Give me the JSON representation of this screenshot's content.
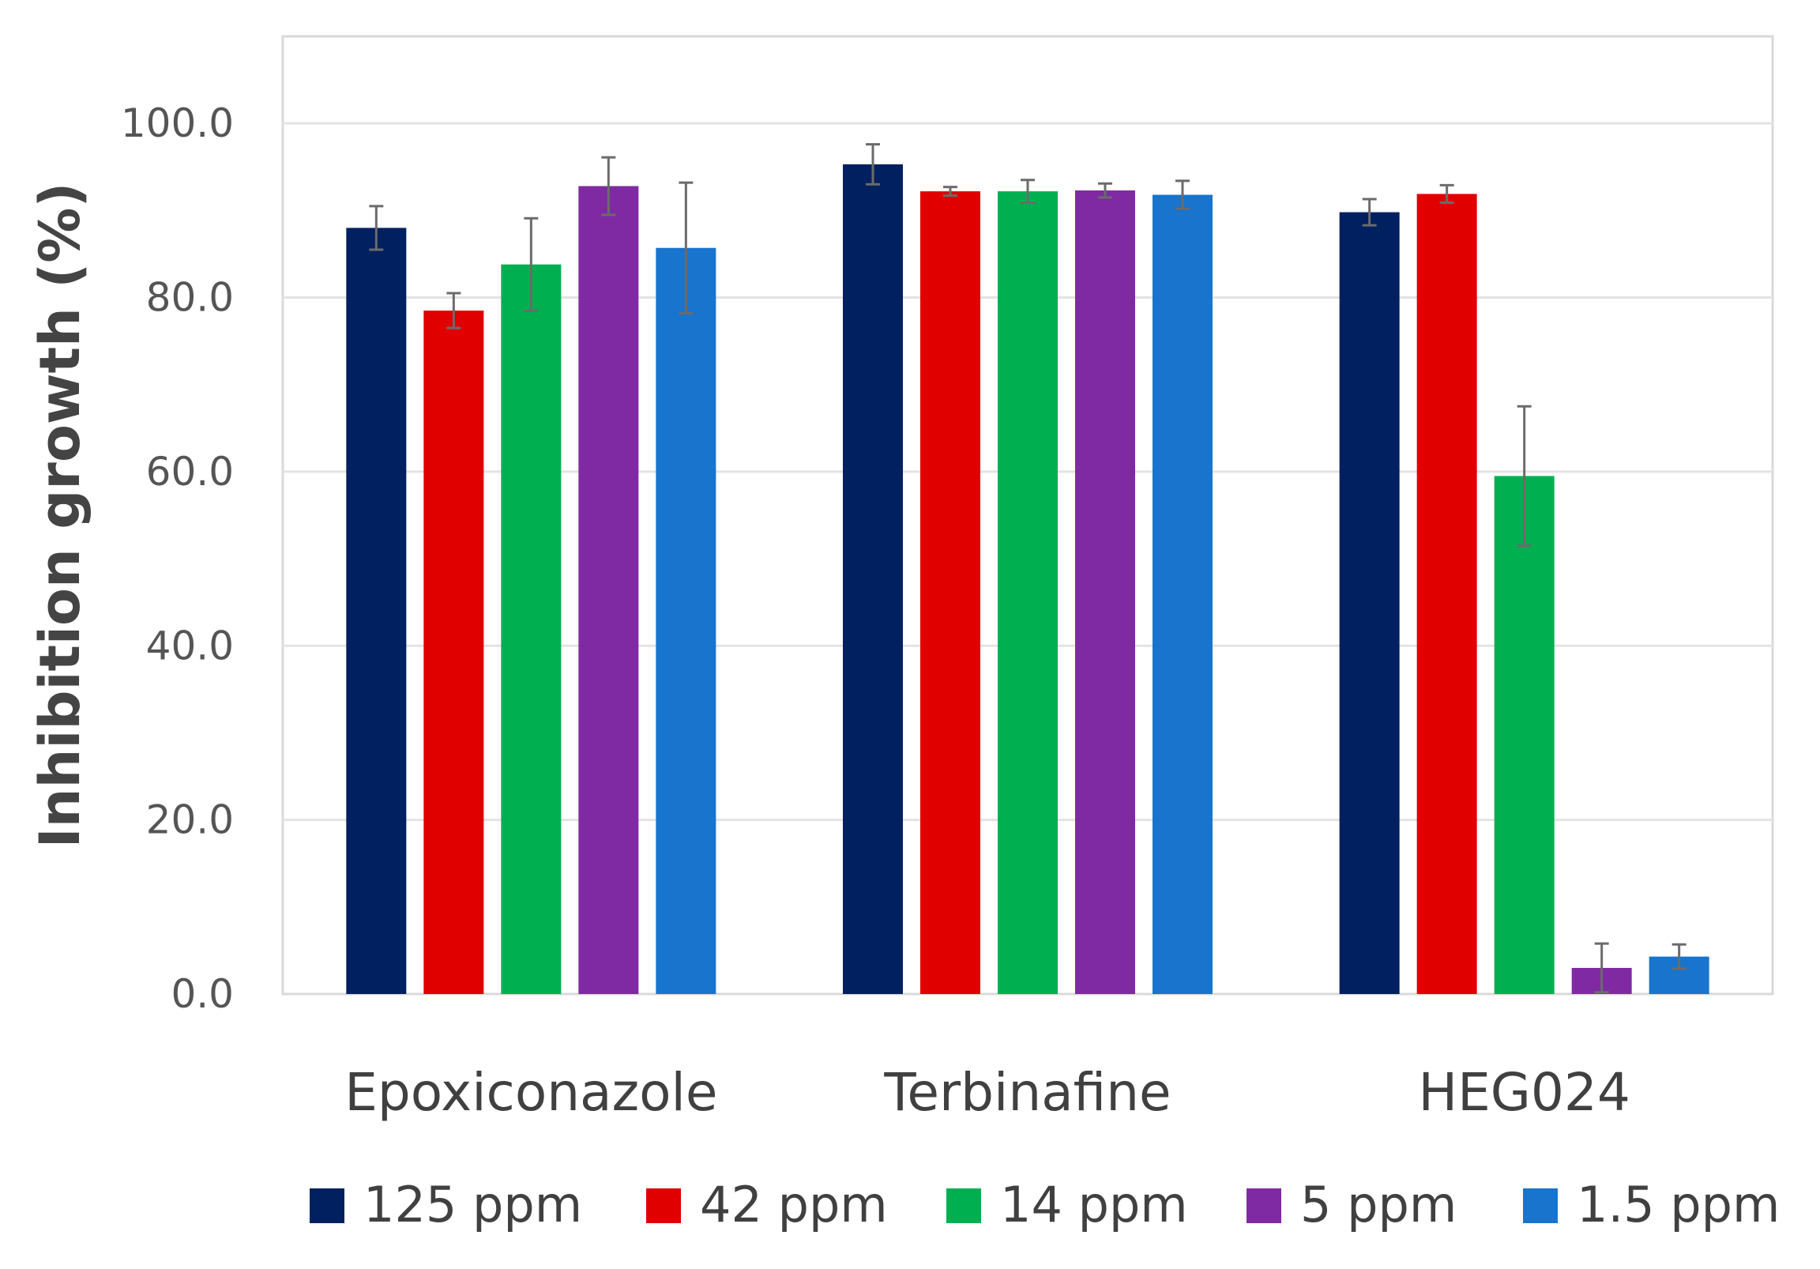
{
  "chart_data": {
    "type": "bar",
    "title": "",
    "xlabel": "",
    "ylabel": "Inhibition growth (%)",
    "ylim": [
      0,
      110
    ],
    "yticks": [
      0,
      20,
      40,
      60,
      80,
      100
    ],
    "ytick_labels": [
      "0.0",
      "20.0",
      "40.0",
      "60.0",
      "80.0",
      "100.0"
    ],
    "grid": true,
    "legend_position": "bottom",
    "categories": [
      "Epoxiconazole",
      "Terbinafine",
      "HEG024"
    ],
    "series": [
      {
        "name": "125 ppm",
        "color": "#002060",
        "values": [
          88.0,
          95.3,
          89.8
        ],
        "errors": [
          2.5,
          2.3,
          1.5
        ]
      },
      {
        "name": "42 ppm",
        "color": "#E00000",
        "values": [
          78.5,
          92.2,
          91.9
        ],
        "errors": [
          2.0,
          0.5,
          1.0
        ]
      },
      {
        "name": "14 ppm",
        "color": "#00B050",
        "values": [
          83.8,
          92.2,
          59.5
        ],
        "errors": [
          5.3,
          1.3,
          8.0
        ]
      },
      {
        "name": "5 ppm",
        "color": "#7F2AA3",
        "values": [
          92.8,
          92.3,
          3.0
        ],
        "errors": [
          3.3,
          0.8,
          2.8
        ]
      },
      {
        "name": "1.5 ppm",
        "color": "#1874CD",
        "values": [
          85.7,
          91.8,
          4.3
        ],
        "errors": [
          7.5,
          1.6,
          1.4
        ]
      }
    ]
  }
}
